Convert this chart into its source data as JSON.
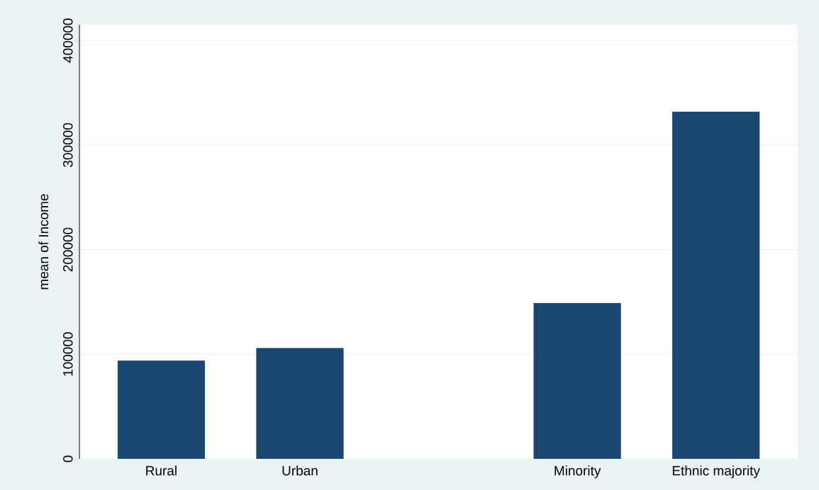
{
  "chart_data": {
    "type": "bar",
    "ylabel": "mean of Income",
    "categories": [
      "Rural",
      "Urban",
      null,
      "Minority",
      "Ethnic majority"
    ],
    "values": [
      94000,
      106000,
      null,
      149000,
      332000
    ],
    "color": "#1a476f",
    "ylim": [
      0,
      415000
    ],
    "yticks": [
      0,
      100000,
      200000,
      300000,
      400000
    ],
    "grid": "y"
  }
}
